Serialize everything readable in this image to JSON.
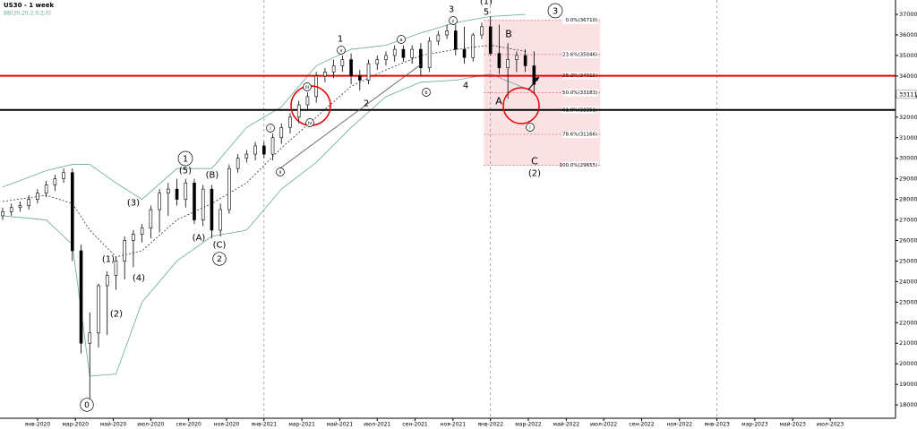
{
  "chart_data": {
    "type": "candlestick",
    "title": "US30 - 1 week",
    "subtitle": "BB(20,20,2,0,2,0)",
    "xlim": [
      0,
      205
    ],
    "xticks": [
      {
        "value": 8,
        "label": "янв-2020"
      },
      {
        "value": 16.7,
        "label": "мар-2020"
      },
      {
        "value": 25.4,
        "label": "май-2020"
      },
      {
        "value": 34,
        "label": "июл-2020"
      },
      {
        "value": 42.7,
        "label": "сен-2020"
      },
      {
        "value": 51.4,
        "label": "ноя-2020"
      },
      {
        "value": 60,
        "label": "янв-2021"
      },
      {
        "value": 68.7,
        "label": "мар-2021"
      },
      {
        "value": 77.4,
        "label": "май-2021"
      },
      {
        "value": 86,
        "label": "июл-2021"
      },
      {
        "value": 94.7,
        "label": "сен-2021"
      },
      {
        "value": 103.4,
        "label": "ноя-2021"
      },
      {
        "value": 112,
        "label": "янв-2022"
      },
      {
        "value": 120.7,
        "label": "мар-2022"
      },
      {
        "value": 129.4,
        "label": "май-2022"
      },
      {
        "value": 138,
        "label": "июл-2022"
      },
      {
        "value": 146.7,
        "label": "сен-2022"
      },
      {
        "value": 155.4,
        "label": "ноя-2022"
      },
      {
        "value": 164,
        "label": "янв-2023"
      },
      {
        "value": 172.7,
        "label": "мар-2023"
      },
      {
        "value": 181.4,
        "label": "май-2023"
      },
      {
        "value": 190,
        "label": "июл-2023"
      }
    ],
    "year_lines": [
      60,
      112,
      164
    ],
    "ylim": [
      17350,
      37700
    ],
    "yticks": [
      18000,
      19000,
      20000,
      21000,
      22000,
      23000,
      24000,
      25000,
      26000,
      27000,
      28000,
      29000,
      30000,
      31000,
      32000,
      33000,
      34000,
      35000,
      36000,
      37000
    ],
    "candles": {
      "x": [
        0,
        2,
        4,
        6,
        8,
        10,
        12,
        14,
        16,
        18,
        20,
        22,
        24,
        26,
        28,
        30,
        32,
        34,
        36,
        38,
        40,
        42,
        44,
        46,
        48,
        50,
        52,
        54,
        56,
        58,
        60,
        62,
        64,
        66,
        68,
        70,
        72,
        74,
        76,
        78,
        80,
        82,
        84,
        86,
        88,
        90,
        92,
        94,
        96,
        98,
        100,
        102,
        104,
        106,
        108,
        110,
        112,
        114,
        116,
        118,
        120,
        122
      ],
      "open": [
        27200,
        27400,
        27600,
        27700,
        28000,
        28300,
        28700,
        29000,
        29300,
        25500,
        21000,
        21500,
        23800,
        24300,
        25000,
        26000,
        26300,
        26600,
        27500,
        28300,
        28500,
        28000,
        28800,
        27000,
        28500,
        26500,
        27500,
        29500,
        30000,
        30200,
        30600,
        30200,
        31000,
        31500,
        32000,
        32600,
        33000,
        34000,
        34200,
        34500,
        34800,
        34000,
        33800,
        34600,
        34800,
        35000,
        35300,
        34900,
        35300,
        34400,
        35700,
        36000,
        36200,
        35300,
        34900,
        36000,
        36400,
        35100,
        34400,
        34800,
        35000,
        34500
      ],
      "high": [
        27600,
        27800,
        27900,
        28200,
        28500,
        28900,
        29200,
        29500,
        29500,
        25800,
        22500,
        23900,
        24500,
        25200,
        26200,
        26500,
        26800,
        27700,
        28500,
        28800,
        29000,
        29000,
        29000,
        28700,
        28700,
        27800,
        29700,
        30200,
        30400,
        30800,
        30800,
        31200,
        31700,
        32200,
        32800,
        33200,
        34200,
        34400,
        34800,
        35000,
        35100,
        34300,
        34800,
        35000,
        35200,
        35500,
        35500,
        35500,
        35600,
        35900,
        36200,
        36500,
        36500,
        36400,
        36100,
        36600,
        36900,
        36500,
        35600,
        35200,
        35300,
        35200
      ],
      "low": [
        27000,
        27200,
        27400,
        27500,
        27800,
        28100,
        28400,
        28800,
        25000,
        20500,
        18200,
        20800,
        21400,
        23600,
        24100,
        24700,
        25900,
        26100,
        26400,
        27200,
        27700,
        27600,
        26800,
        26700,
        26100,
        26200,
        27300,
        29300,
        29800,
        29900,
        30000,
        29900,
        30700,
        31200,
        31700,
        32300,
        32700,
        33700,
        33900,
        34200,
        33600,
        33300,
        33600,
        34300,
        34500,
        34700,
        34700,
        34600,
        34000,
        34200,
        35500,
        35800,
        35000,
        34600,
        34700,
        35800,
        35000,
        34100,
        32900,
        34200,
        34200,
        33100
      ],
      "close": [
        27400,
        27600,
        27700,
        28000,
        28300,
        28700,
        29000,
        29300,
        25500,
        21000,
        21500,
        23800,
        24300,
        25000,
        26000,
        26300,
        26600,
        27500,
        28300,
        28500,
        28000,
        28800,
        27000,
        28500,
        26500,
        27500,
        29500,
        30000,
        30200,
        30600,
        30200,
        31000,
        31500,
        32000,
        32600,
        33000,
        34000,
        34200,
        34500,
        34800,
        34000,
        33800,
        34600,
        34800,
        35000,
        35300,
        34900,
        35300,
        34400,
        35700,
        36000,
        36200,
        35300,
        34900,
        36000,
        36400,
        35100,
        34400,
        34800,
        35000,
        34500,
        33600
      ]
    },
    "bands": {
      "x": [
        0,
        10,
        16,
        20,
        26,
        32,
        40,
        48,
        56,
        64,
        72,
        80,
        88,
        96,
        104,
        112,
        120
      ],
      "color": "#6aa89a",
      "upper": [
        28600,
        29400,
        29700,
        29700,
        28800,
        28000,
        29500,
        29500,
        31500,
        32500,
        34500,
        35300,
        35500,
        36100,
        36600,
        36900,
        37000
      ],
      "middle": [
        27900,
        28200,
        27800,
        26500,
        25200,
        25500,
        27000,
        27800,
        28800,
        30500,
        32000,
        33500,
        34300,
        35000,
        35300,
        35500,
        35200
      ],
      "lower": [
        27200,
        27000,
        25800,
        19400,
        19500,
        23000,
        25000,
        26200,
        26500,
        28500,
        29800,
        31500,
        33000,
        33700,
        33800,
        34100,
        33400
      ]
    },
    "fib_zone_x": [
      110.5,
      137.2
    ],
    "fib_levels": [
      {
        "value": 36710,
        "label": "0.0%(36710)"
      },
      {
        "value": 35046,
        "label": "23.6%(35046)"
      },
      {
        "value": 34015,
        "label": "38.2%(34015)"
      },
      {
        "value": 33183,
        "label": "50.0%(33183)"
      },
      {
        "value": 32351,
        "label": "61.8%(32351)"
      },
      {
        "value": 31166,
        "label": "78.6%(31166)"
      },
      {
        "value": 29655,
        "label": "100.0%(29655)"
      }
    ],
    "key_lines": [
      {
        "value": 34015,
        "color": "#e60000"
      },
      {
        "value": 32351,
        "color": "#000000"
      }
    ],
    "last_price": 33111,
    "annotations": [
      "0",
      "(1)",
      "(2)",
      "(3)",
      "(4)",
      "1",
      "(5)",
      "(B)",
      "(A)",
      "(C)",
      "2",
      "1",
      "2",
      "3",
      "4",
      "5",
      "(1)",
      "3",
      "A",
      "B",
      "C",
      "(2)",
      "i",
      "ii",
      "iii",
      "iv",
      "v",
      "a",
      "b",
      "c",
      "i"
    ]
  }
}
